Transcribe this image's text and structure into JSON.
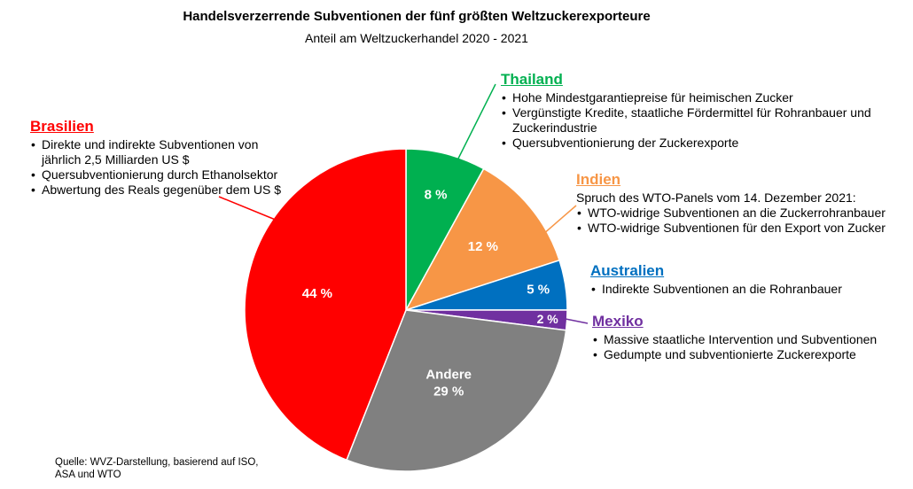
{
  "title": "Handelsverzerrende Subventionen der fünf größten Weltzuckerexporteure",
  "subtitle": "Anteil am Weltzuckerhandel 2020 - 2021",
  "source": "Quelle: WVZ-Darstellung, basierend auf ISO, ASA und WTO",
  "chart_data": {
    "type": "pie",
    "title": "Handelsverzerrende Subventionen der fünf größten Weltzuckerexporteure",
    "subtitle": "Anteil am Weltzuckerhandel 2020 - 2021",
    "unit": "%",
    "slices": [
      {
        "name": "Thailand",
        "value": 8,
        "label": "8 %",
        "color": "#00b050"
      },
      {
        "name": "Indien",
        "value": 12,
        "label": "12 %",
        "color": "#f79646"
      },
      {
        "name": "Australien",
        "value": 5,
        "label": "5 %",
        "color": "#0070c0"
      },
      {
        "name": "Mexiko",
        "value": 2,
        "label": "2 %",
        "color": "#7030a0"
      },
      {
        "name": "Andere",
        "value": 29,
        "label": "29 %",
        "color": "#808080"
      },
      {
        "name": "Brasilien",
        "value": 44,
        "label": "44 %",
        "color": "#ff0000"
      }
    ]
  },
  "annotations": {
    "brasilien": {
      "name": "Brasilien",
      "color": "#ff0000",
      "bullets": [
        "Direkte und indirekte Subventionen von jährlich 2,5 Milliarden US $",
        "Quersubventionierung durch Ethanolsektor",
        "Abwertung des Reals gegenüber dem US $"
      ]
    },
    "thailand": {
      "name": "Thailand",
      "color": "#00b050",
      "bullets": [
        "Hohe Mindestgarantiepreise für heimischen Zucker",
        "Vergünstigte Kredite, staatliche Fördermittel für Rohranbauer und Zuckerindustrie",
        "Quersubventionierung der Zuckerexporte"
      ]
    },
    "indien": {
      "name": "Indien",
      "color": "#f79646",
      "intro": "Spruch des WTO-Panels vom 14. Dezember 2021:",
      "bullets": [
        "WTO-widrige Subventionen an die Zuckerrohranbauer",
        "WTO-widrige Subventionen für den Export von Zucker"
      ]
    },
    "australien": {
      "name": "Australien",
      "color": "#0070c0",
      "bullets": [
        "Indirekte Subventionen an die Rohranbauer"
      ]
    },
    "mexiko": {
      "name": "Mexiko",
      "color": "#7030a0",
      "bullets": [
        "Massive staatliche Intervention und Subventionen",
        "Gedumpte und subventionierte Zuckerexporte"
      ]
    }
  }
}
